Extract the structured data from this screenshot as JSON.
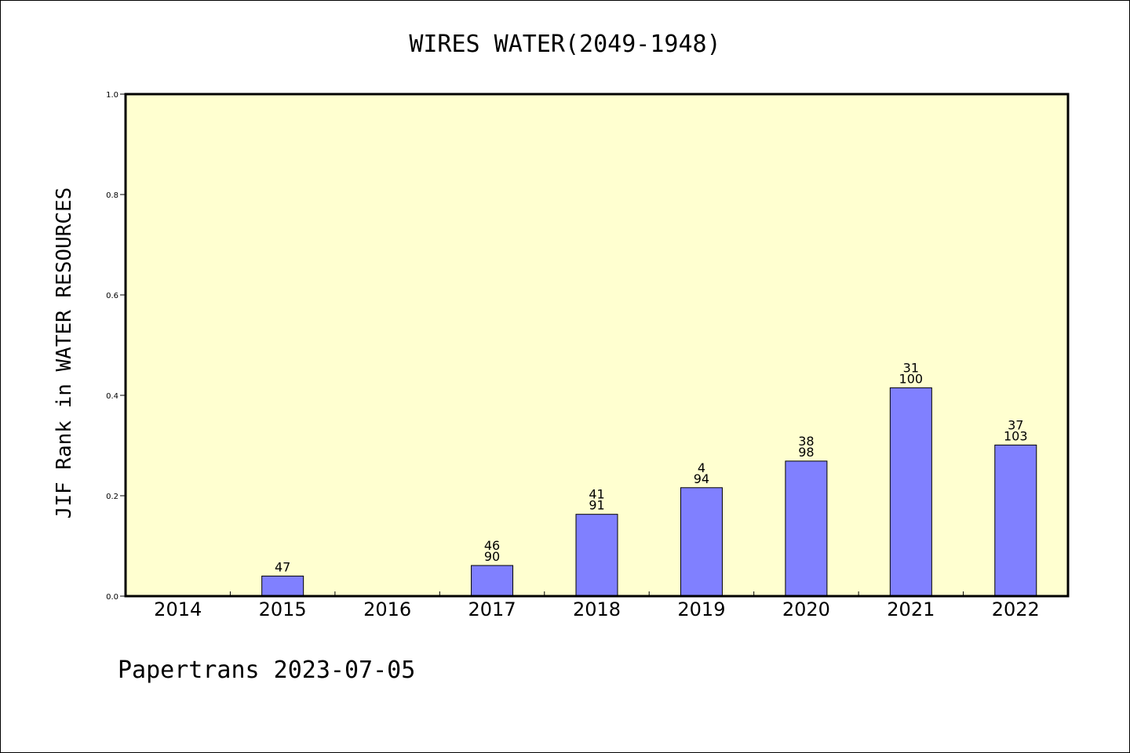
{
  "chart_data": {
    "type": "bar",
    "title": "WIRES WATER(2049-1948)",
    "xlabel": "",
    "ylabel": "JIF Rank in WATER RESOURCES",
    "ylim": [
      0,
      1.0
    ],
    "yticks": [
      "0.0",
      "0.2",
      "0.4",
      "0.6",
      "0.8",
      "1.0"
    ],
    "grid": false,
    "categories": [
      "2014",
      "2015",
      "2016",
      "2017",
      "2018",
      "2019",
      "2020",
      "2021",
      "2022"
    ],
    "values": [
      null,
      0.04,
      null,
      0.061,
      0.163,
      0.216,
      0.269,
      0.415,
      0.301
    ],
    "labels_top": [
      "",
      "",
      "",
      "46",
      "41",
      "4",
      "38",
      "31",
      "37"
    ],
    "labels_bottom": [
      "",
      "47",
      "",
      "90",
      "91",
      "94",
      "98",
      "100",
      "103"
    ],
    "colors": {
      "plot_bg": "#ffffd0",
      "bar": "#8080ff",
      "border": "#000000"
    }
  },
  "footer": "Papertrans 2023-07-05"
}
